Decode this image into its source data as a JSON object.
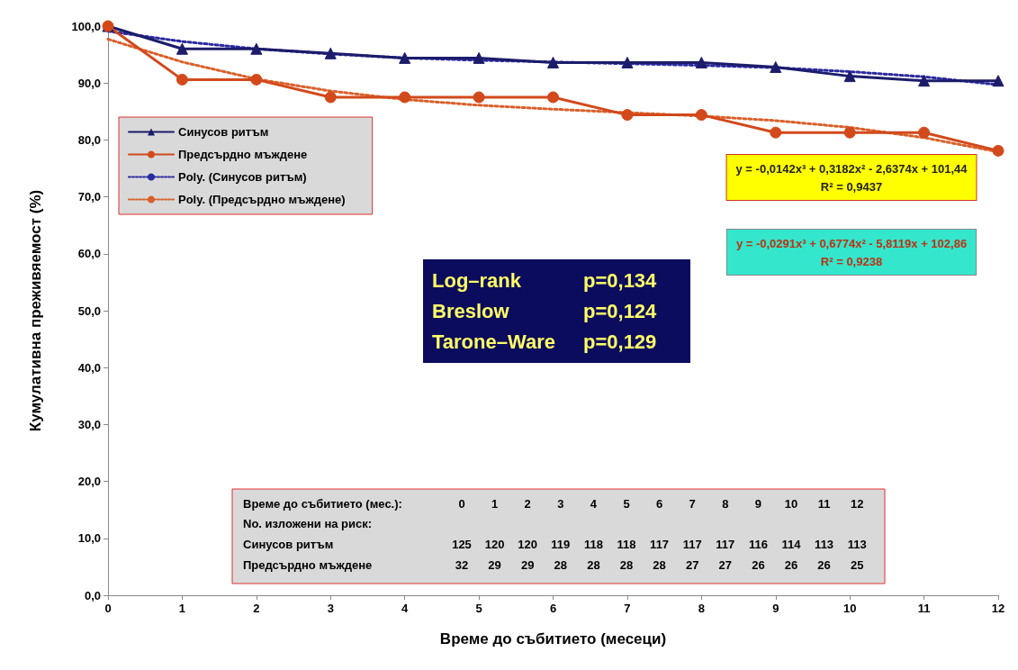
{
  "chart_data": {
    "type": "line",
    "xlabel": "Време до събитието (месеци)",
    "ylabel": "Кумулативна преживяемост (%)",
    "x": [
      0,
      1,
      2,
      3,
      4,
      5,
      6,
      7,
      8,
      9,
      10,
      11,
      12
    ],
    "series": [
      {
        "name": "Синусов ритъм",
        "color": "#1c1c6b",
        "marker": "triangle",
        "line_style": "solid",
        "values": [
          100,
          96.0,
          96.0,
          95.2,
          94.4,
          94.4,
          93.6,
          93.6,
          93.6,
          92.8,
          91.2,
          90.4,
          90.4
        ]
      },
      {
        "name": "Предсърдно мъждене",
        "color": "#d2491b",
        "marker": "circle",
        "line_style": "solid",
        "values": [
          100,
          90.6,
          90.6,
          87.5,
          87.5,
          87.5,
          87.5,
          84.4,
          84.4,
          81.3,
          81.3,
          81.3,
          78.1
        ]
      },
      {
        "name": "Poly. (Синусов ритъм)",
        "color": "#2a2aa0",
        "marker": "none",
        "line_style": "dotted",
        "values": [
          99.1,
          97.3,
          96.0,
          95.1,
          94.4,
          94.0,
          93.7,
          93.4,
          93.1,
          92.7,
          92.0,
          91.1,
          89.7
        ]
      },
      {
        "name": "Poly. (Предсърдно мъждене)",
        "color": "#d9602a",
        "marker": "none",
        "line_style": "dotted",
        "values": [
          97.7,
          93.7,
          90.7,
          88.6,
          87.1,
          86.1,
          85.4,
          84.8,
          84.2,
          83.4,
          82.2,
          80.4,
          77.9
        ]
      }
    ],
    "xlim": [
      0,
      12
    ],
    "xticks": [
      0,
      1,
      2,
      3,
      4,
      5,
      6,
      7,
      8,
      9,
      10,
      11,
      12
    ],
    "ylim": [
      0,
      100
    ],
    "yticks": [
      {
        "value": 0,
        "label": "0,0"
      },
      {
        "value": 10,
        "label": "10,0"
      },
      {
        "value": 20,
        "label": "20,0"
      },
      {
        "value": 30,
        "label": "30,0"
      },
      {
        "value": 40,
        "label": "40,0"
      },
      {
        "value": 50,
        "label": "50,0"
      },
      {
        "value": 60,
        "label": "60,0"
      },
      {
        "value": 70,
        "label": "70,0"
      },
      {
        "value": 80,
        "label": "80,0"
      },
      {
        "value": 90,
        "label": "90,0"
      },
      {
        "value": 100,
        "label": "100,0"
      }
    ],
    "grid": false,
    "legend": "top left",
    "annotations": [
      "y = -0,0142x³ + 0,3182x² - 2,6374x + 101,44",
      "R² = 0,9437",
      "y = -0,0291x³ + 0,6774x² - 5,8119x + 102,86",
      "R² = 0,9238",
      "Log–rank",
      "p=0,134",
      "Breslow",
      "p=0,124",
      "Tarone–Ware",
      "p=0,129",
      "Време до събитието (мес.):",
      "0 1 2 3 4 5 6 7 8 9 10 11 12",
      "No. изложени на риск:",
      "Синусов ритъм",
      "125 120 120 119 118 118 117 117 117 116 114 113 113",
      "Предсърдно мъждене",
      "32 29 29 28 28 28 28 27 27 26 26 26 25"
    ]
  }
}
